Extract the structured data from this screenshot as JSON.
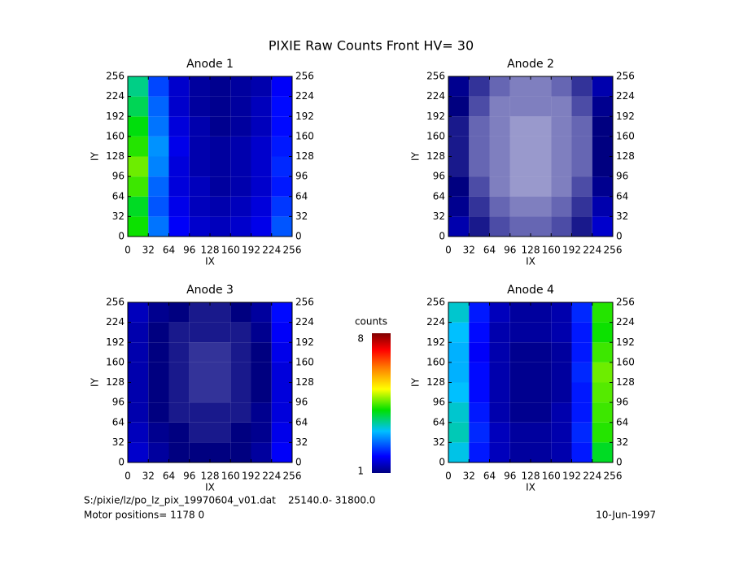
{
  "title": "PIXIE Raw Counts Front HV= 30",
  "colorbar": {
    "label": "counts",
    "range": [
      1,
      8
    ]
  },
  "footer": {
    "file": "S:/pixie/lz/po_lz_pix_19970604_v01.dat    25140.0- 31800.0",
    "motor": "Motor positions= 1178 0",
    "date": "10-Jun-1997"
  },
  "chart_data": [
    {
      "type": "heatmap",
      "title": "Anode 1",
      "xlabel": "IX",
      "ylabel": "IY",
      "xlim": [
        0,
        256
      ],
      "ylim": [
        0,
        256
      ],
      "xticks": [
        0,
        32,
        64,
        96,
        128,
        160,
        192,
        224,
        256
      ],
      "yticks": [
        0,
        32,
        64,
        96,
        128,
        160,
        192,
        224,
        256
      ],
      "z": [
        [
          4.2,
          2.6,
          1.8,
          1.5,
          1.4,
          1.5,
          1.7,
          2.4
        ],
        [
          4.0,
          2.4,
          1.7,
          1.4,
          1.3,
          1.4,
          1.6,
          2.2
        ],
        [
          4.4,
          2.5,
          1.6,
          1.4,
          1.2,
          1.3,
          1.5,
          2.0
        ],
        [
          4.6,
          2.7,
          1.6,
          1.3,
          1.2,
          1.3,
          1.5,
          2.1
        ],
        [
          4.3,
          2.8,
          1.7,
          1.3,
          1.2,
          1.3,
          1.5,
          2.0
        ],
        [
          4.1,
          2.6,
          1.6,
          1.3,
          1.1,
          1.2,
          1.4,
          1.9
        ],
        [
          3.8,
          2.5,
          1.5,
          1.2,
          1.1,
          1.2,
          1.4,
          1.9
        ],
        [
          3.6,
          2.3,
          1.5,
          1.2,
          1.1,
          1.2,
          1.3,
          1.8
        ]
      ]
    },
    {
      "type": "heatmap",
      "title": "Anode 2",
      "xlabel": "IX",
      "ylabel": "IY",
      "xlim": [
        0,
        256
      ],
      "ylim": [
        0,
        256
      ],
      "xticks": [
        0,
        32,
        64,
        96,
        128,
        160,
        192,
        224,
        256
      ],
      "yticks": [
        0,
        32,
        64,
        96,
        128,
        160,
        192,
        224,
        256
      ],
      "z": [
        [
          1.3,
          0.9,
          0.7,
          0.6,
          0.6,
          0.7,
          0.9,
          1.5
        ],
        [
          1.1,
          0.8,
          0.6,
          0.5,
          0.5,
          0.6,
          0.8,
          1.3
        ],
        [
          1.0,
          0.7,
          0.5,
          0.4,
          0.4,
          0.5,
          0.7,
          1.1
        ],
        [
          0.9,
          0.6,
          0.5,
          0.4,
          0.4,
          0.5,
          0.6,
          1.0
        ],
        [
          0.9,
          0.6,
          0.5,
          0.4,
          0.4,
          0.5,
          0.6,
          1.0
        ],
        [
          0.9,
          0.6,
          0.5,
          0.4,
          0.4,
          0.5,
          0.6,
          1.0
        ],
        [
          1.0,
          0.7,
          0.5,
          0.5,
          0.5,
          0.5,
          0.7,
          1.1
        ],
        [
          1.1,
          0.8,
          0.6,
          0.5,
          0.5,
          0.6,
          0.8,
          1.3
        ]
      ]
    },
    {
      "type": "heatmap",
      "title": "Anode 3",
      "xlabel": "IX",
      "ylabel": "IY",
      "xlim": [
        0,
        256
      ],
      "ylim": [
        0,
        256
      ],
      "xticks": [
        0,
        32,
        64,
        96,
        128,
        160,
        192,
        224,
        256
      ],
      "yticks": [
        0,
        32,
        64,
        96,
        128,
        160,
        192,
        224,
        256
      ],
      "z": [
        [
          1.5,
          1.2,
          1.0,
          1.0,
          1.0,
          1.0,
          1.2,
          1.8
        ],
        [
          1.4,
          1.1,
          1.0,
          0.9,
          0.9,
          1.0,
          1.1,
          1.7
        ],
        [
          1.3,
          1.0,
          0.9,
          0.9,
          0.9,
          0.9,
          1.1,
          1.6
        ],
        [
          1.3,
          1.0,
          0.9,
          0.8,
          0.8,
          0.9,
          1.0,
          1.6
        ],
        [
          1.3,
          1.0,
          0.9,
          0.8,
          0.8,
          0.9,
          1.0,
          1.6
        ],
        [
          1.3,
          1.0,
          0.9,
          0.8,
          0.8,
          0.9,
          1.0,
          1.7
        ],
        [
          1.3,
          1.0,
          0.9,
          0.9,
          0.9,
          0.9,
          1.1,
          1.8
        ],
        [
          1.4,
          1.1,
          1.0,
          0.9,
          0.9,
          1.0,
          1.2,
          1.9
        ]
      ]
    },
    {
      "type": "heatmap",
      "title": "Anode 4",
      "xlabel": "IX",
      "ylabel": "IY",
      "xlim": [
        0,
        256
      ],
      "ylim": [
        0,
        256
      ],
      "xticks": [
        0,
        32,
        64,
        96,
        128,
        160,
        192,
        224,
        256
      ],
      "yticks": [
        0,
        32,
        64,
        96,
        128,
        160,
        192,
        224,
        256
      ],
      "z": [
        [
          3.2,
          2.0,
          1.4,
          1.2,
          1.2,
          1.3,
          2.0,
          4.0
        ],
        [
          3.4,
          2.1,
          1.4,
          1.2,
          1.2,
          1.3,
          2.1,
          4.3
        ],
        [
          3.3,
          2.0,
          1.3,
          1.1,
          1.1,
          1.3,
          2.0,
          4.4
        ],
        [
          3.1,
          1.9,
          1.3,
          1.1,
          1.1,
          1.2,
          2.0,
          4.5
        ],
        [
          3.0,
          1.9,
          1.3,
          1.1,
          1.1,
          1.2,
          2.1,
          4.6
        ],
        [
          3.0,
          1.8,
          1.3,
          1.1,
          1.1,
          1.2,
          2.0,
          4.4
        ],
        [
          3.1,
          1.9,
          1.3,
          1.2,
          1.2,
          1.3,
          2.0,
          4.2
        ],
        [
          3.3,
          2.0,
          1.4,
          1.2,
          1.2,
          1.3,
          2.1,
          4.3
        ]
      ]
    }
  ]
}
